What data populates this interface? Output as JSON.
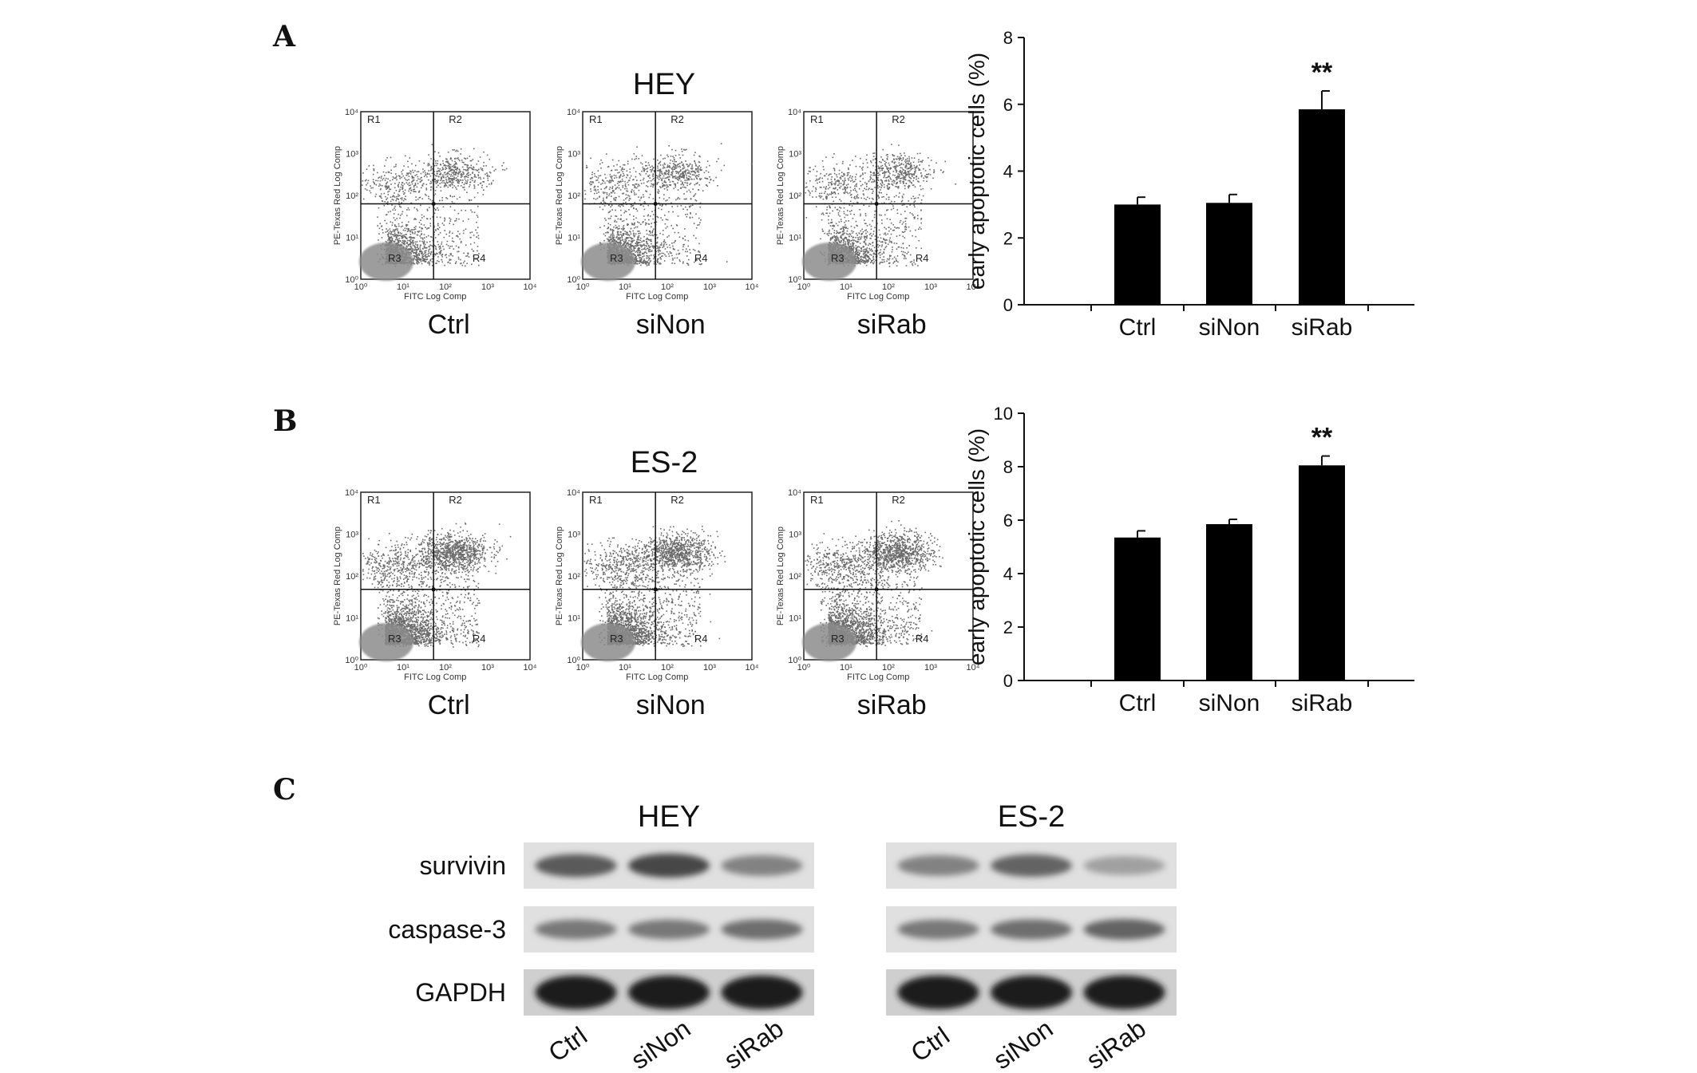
{
  "panels": {
    "a": "A",
    "b": "B",
    "c": "C"
  },
  "flow": {
    "rows": [
      {
        "title": "HEY",
        "plots": [
          {
            "label": "Ctrl"
          },
          {
            "label": "siNon"
          },
          {
            "label": "siRab"
          }
        ]
      },
      {
        "title": "ES-2",
        "plots": [
          {
            "label": "Ctrl"
          },
          {
            "label": "siNon"
          },
          {
            "label": "siRab"
          }
        ]
      }
    ],
    "x_axis_label": "FITC Log Comp",
    "y_axis_label": "PE-Texas Red Log Comp",
    "region_labels": [
      "R1",
      "R2",
      "R3",
      "R4"
    ],
    "tick_labels": [
      "10⁰",
      "10¹",
      "10²",
      "10³",
      "10⁴"
    ]
  },
  "chart_data": [
    {
      "type": "bar",
      "categories": [
        "Ctrl",
        "siNon",
        "siRab"
      ],
      "values": [
        3.0,
        3.05,
        5.85
      ],
      "errors": [
        0.22,
        0.25,
        0.55
      ],
      "ylabel": "early apoptotic cells (%)",
      "ylim": [
        0,
        8
      ],
      "yticks": [
        0,
        2,
        4,
        6,
        8
      ],
      "annotations": [
        {
          "category": "siRab",
          "text": "**"
        }
      ],
      "grid": false,
      "bar_color": "#000000"
    },
    {
      "type": "bar",
      "categories": [
        "Ctrl",
        "siNon",
        "siRab"
      ],
      "values": [
        5.35,
        5.85,
        8.05
      ],
      "errors": [
        0.25,
        0.18,
        0.35
      ],
      "ylabel": "early apoptotic cells (%)",
      "ylim": [
        0,
        10
      ],
      "yticks": [
        0,
        2,
        4,
        6,
        8,
        10
      ],
      "annotations": [
        {
          "category": "siRab",
          "text": "**"
        }
      ],
      "grid": false,
      "bar_color": "#000000"
    }
  ],
  "western": {
    "blots": [
      {
        "title": "HEY",
        "lanes": [
          "Ctrl",
          "siNon",
          "siRab"
        ]
      },
      {
        "title": "ES-2",
        "lanes": [
          "Ctrl",
          "siNon",
          "siRab"
        ]
      }
    ],
    "proteins": [
      "survivin",
      "caspase-3",
      "GAPDH"
    ]
  }
}
